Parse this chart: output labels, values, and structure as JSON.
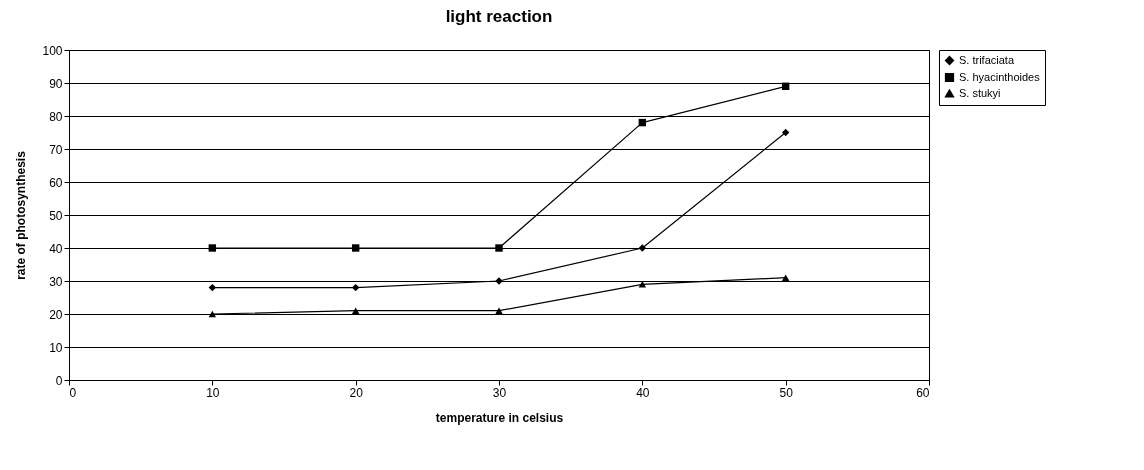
{
  "chart_data": {
    "type": "line",
    "title": "light reaction",
    "xlabel": "temperature in celsius",
    "ylabel": "rate of photosynthesis",
    "x": [
      10,
      20,
      30,
      40,
      50
    ],
    "series": [
      {
        "name": "S. trifaciata",
        "color": "#000000",
        "marker": "diamond",
        "values": [
          28,
          28,
          30,
          40,
          75
        ]
      },
      {
        "name": "S. hyacinthoides",
        "color": "#000000",
        "marker": "square",
        "values": [
          40,
          40,
          40,
          78,
          89
        ]
      },
      {
        "name": "S. stukyi",
        "color": "#000000",
        "marker": "triangle",
        "values": [
          20,
          21,
          21,
          29,
          31
        ]
      }
    ],
    "xlim": [
      0,
      60
    ],
    "xticks": [
      0,
      10,
      20,
      30,
      40,
      50,
      60
    ],
    "ylim": [
      0,
      100
    ],
    "yticks": [
      0,
      10,
      20,
      30,
      40,
      50,
      60,
      70,
      80,
      90,
      100
    ],
    "grid": "y",
    "legend": "right",
    "line_style": "solid"
  }
}
